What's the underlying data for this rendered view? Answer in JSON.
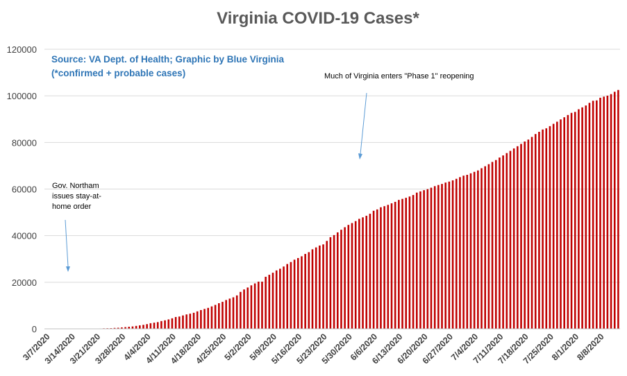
{
  "chart_data": {
    "type": "bar",
    "title": "Virginia COVID-19 Cases*",
    "source_lines": [
      "Source: VA Dept. of Health; Graphic by Blue Virginia",
      "(*confirmed + probable cases)"
    ],
    "xlabel": "",
    "ylabel": "",
    "ylim": [
      0,
      120000
    ],
    "yticks": [
      0,
      20000,
      40000,
      60000,
      80000,
      100000,
      120000
    ],
    "grid": true,
    "legend": "none",
    "start_date": "3/7/2020",
    "x_tick_labels": [
      "3/7/2020",
      "3/14/2020",
      "3/21/2020",
      "3/28/2020",
      "4/4/2020",
      "4/11/2020",
      "4/18/2020",
      "4/25/2020",
      "5/2/2020",
      "5/9/2020",
      "5/16/2020",
      "5/23/2020",
      "5/30/2020",
      "6/6/2020",
      "6/13/2020",
      "6/20/2020",
      "6/27/2020",
      "7/4/2020",
      "7/11/2020",
      "7/18/2020",
      "7/25/2020",
      "8/1/2020",
      "8/8/2020"
    ],
    "bar_color": "#c00000",
    "series": [
      {
        "values": [
          2,
          3,
          3,
          5,
          8,
          9,
          12,
          17,
          30,
          41,
          45,
          67,
          77,
          99,
          114,
          152,
          219,
          254,
          290,
          391,
          460,
          604,
          739,
          890,
          1020,
          1250,
          1484,
          1706,
          2012,
          2407,
          2637,
          2878,
          3333,
          3645,
          4042,
          4509,
          5077,
          5274,
          5747,
          6182,
          6500,
          6889,
          7491,
          8053,
          8537,
          8990,
          9630,
          10266,
          10998,
          11594,
          12366,
          12970,
          13535,
          14339,
          15846,
          16901,
          17731,
          18671,
          19492,
          20256,
          20257,
          22342,
          23196,
          24081,
          25070,
          25800,
          26746,
          27813,
          28672,
          29683,
          30388,
          31140,
          32145,
          32908,
          34137,
          34950,
          35749,
          36244,
          37727,
          39342,
          40249,
          41401,
          42533,
          43611,
          44607,
          45398,
          46239,
          47210,
          47856,
          48532,
          49397,
          50681,
          51251,
          52177,
          52647,
          53211,
          53869,
          54506,
          55331,
          55775,
          56238,
          56793,
          57443,
          58465,
          58994,
          59514,
          59946,
          60570,
          61247,
          61736,
          62189,
          62787,
          63203,
          63735,
          64393,
          65109,
          65748,
          66102,
          66740,
          67375,
          67988,
          68931,
          69782,
          70670,
          71642,
          72443,
          73527,
          74431,
          75433,
          76373,
          77430,
          78375,
          79371,
          80393,
          81237,
          82364,
          83609,
          84567,
          85551,
          86072,
          86994,
          87993,
          88904,
          89888,
          90801,
          91782,
          92691,
          93106,
          94251,
          95049,
          95867,
          96989,
          97882,
          98041,
          99189,
          99669,
          100086,
          100749,
          101745,
          102521
        ]
      }
    ],
    "annotations": [
      {
        "lines": [
          "Gov. Northam",
          "issues stay-at-",
          "home order"
        ]
      },
      {
        "lines": [
          "Much of Virginia enters \"Phase 1\" reopening"
        ]
      }
    ]
  }
}
